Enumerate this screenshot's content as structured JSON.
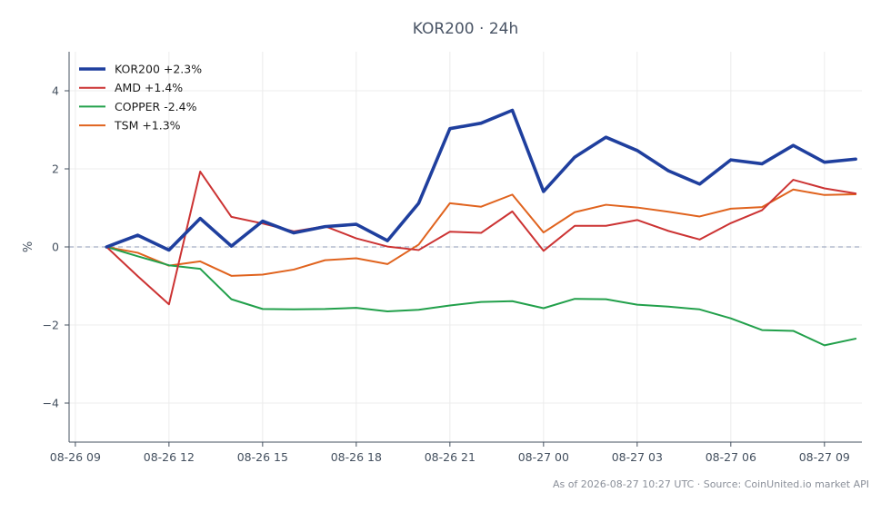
{
  "chart_data": {
    "type": "line",
    "title": "KOR200 · 24h",
    "xlabel": "",
    "ylabel": "%",
    "x": [
      "08-26 10:00",
      "08-26 11:00",
      "08-26 12:00",
      "08-26 13:00",
      "08-26 14:00",
      "08-26 15:00",
      "08-26 16:00",
      "08-26 17:00",
      "08-26 18:00",
      "08-26 19:00",
      "08-26 20:00",
      "08-26 21:00",
      "08-26 22:00",
      "08-26 23:00",
      "08-27 00:00",
      "08-27 01:00",
      "08-27 02:00",
      "08-27 03:00",
      "08-27 04:00",
      "08-27 05:00",
      "08-27 06:00",
      "08-27 07:00",
      "08-27 08:00",
      "08-27 09:00",
      "08-27 10:00"
    ],
    "x_ticks": [
      {
        "label": "08-26 09",
        "hour": -1
      },
      {
        "label": "08-26 12",
        "hour": 2
      },
      {
        "label": "08-26 15",
        "hour": 5
      },
      {
        "label": "08-26 18",
        "hour": 8
      },
      {
        "label": "08-26 21",
        "hour": 11
      },
      {
        "label": "08-27 00",
        "hour": 14
      },
      {
        "label": "08-27 03",
        "hour": 17
      },
      {
        "label": "08-27 06",
        "hour": 20
      },
      {
        "label": "08-27 09",
        "hour": 23
      }
    ],
    "xlim_hours": [
      -1.2,
      24.2
    ],
    "ylim": [
      -5,
      5
    ],
    "y_ticks": [
      -4,
      -2,
      0,
      2,
      4
    ],
    "y_tick_labels": [
      "−4",
      "−2",
      "0",
      "2",
      "4"
    ],
    "zero_line": true,
    "grid": true,
    "legend_position": "top-left",
    "series": [
      {
        "name": "KOR200 +2.3%",
        "color": "#1f3f9e",
        "width": 3.6,
        "values": [
          0,
          0.3,
          -0.08,
          0.73,
          0.02,
          0.66,
          0.36,
          0.52,
          0.58,
          0.16,
          1.12,
          3.03,
          3.17,
          3.5,
          1.42,
          2.3,
          2.81,
          2.47,
          1.95,
          1.61,
          2.23,
          2.13,
          2.6,
          2.17,
          2.25
        ]
      },
      {
        "name": "AMD +1.4%",
        "color": "#cc3333",
        "width": 2,
        "values": [
          0,
          -0.75,
          -1.47,
          1.93,
          0.77,
          0.6,
          0.4,
          0.53,
          0.22,
          0.01,
          -0.08,
          0.39,
          0.36,
          0.91,
          -0.1,
          0.54,
          0.54,
          0.69,
          0.41,
          0.19,
          0.61,
          0.94,
          1.72,
          1.5,
          1.37
        ]
      },
      {
        "name": "COPPER -2.4%",
        "color": "#22a04b",
        "width": 2,
        "values": [
          0,
          -0.24,
          -0.47,
          -0.56,
          -1.34,
          -1.59,
          -1.6,
          -1.59,
          -1.56,
          -1.65,
          -1.61,
          -1.5,
          -1.41,
          -1.39,
          -1.57,
          -1.33,
          -1.34,
          -1.48,
          -1.53,
          -1.6,
          -1.83,
          -2.13,
          -2.15,
          -2.52,
          -2.35
        ]
      },
      {
        "name": "TSM +1.3%",
        "color": "#e0631e",
        "width": 2,
        "values": [
          0,
          -0.15,
          -0.48,
          -0.37,
          -0.74,
          -0.71,
          -0.58,
          -0.34,
          -0.29,
          -0.44,
          0.06,
          1.12,
          1.03,
          1.34,
          0.37,
          0.89,
          1.08,
          1.01,
          0.9,
          0.78,
          0.98,
          1.02,
          1.47,
          1.33,
          1.35
        ]
      }
    ]
  },
  "footer": {
    "text": "As of 2026-08-27 10:27 UTC · Source: CoinUnited.io market API"
  }
}
